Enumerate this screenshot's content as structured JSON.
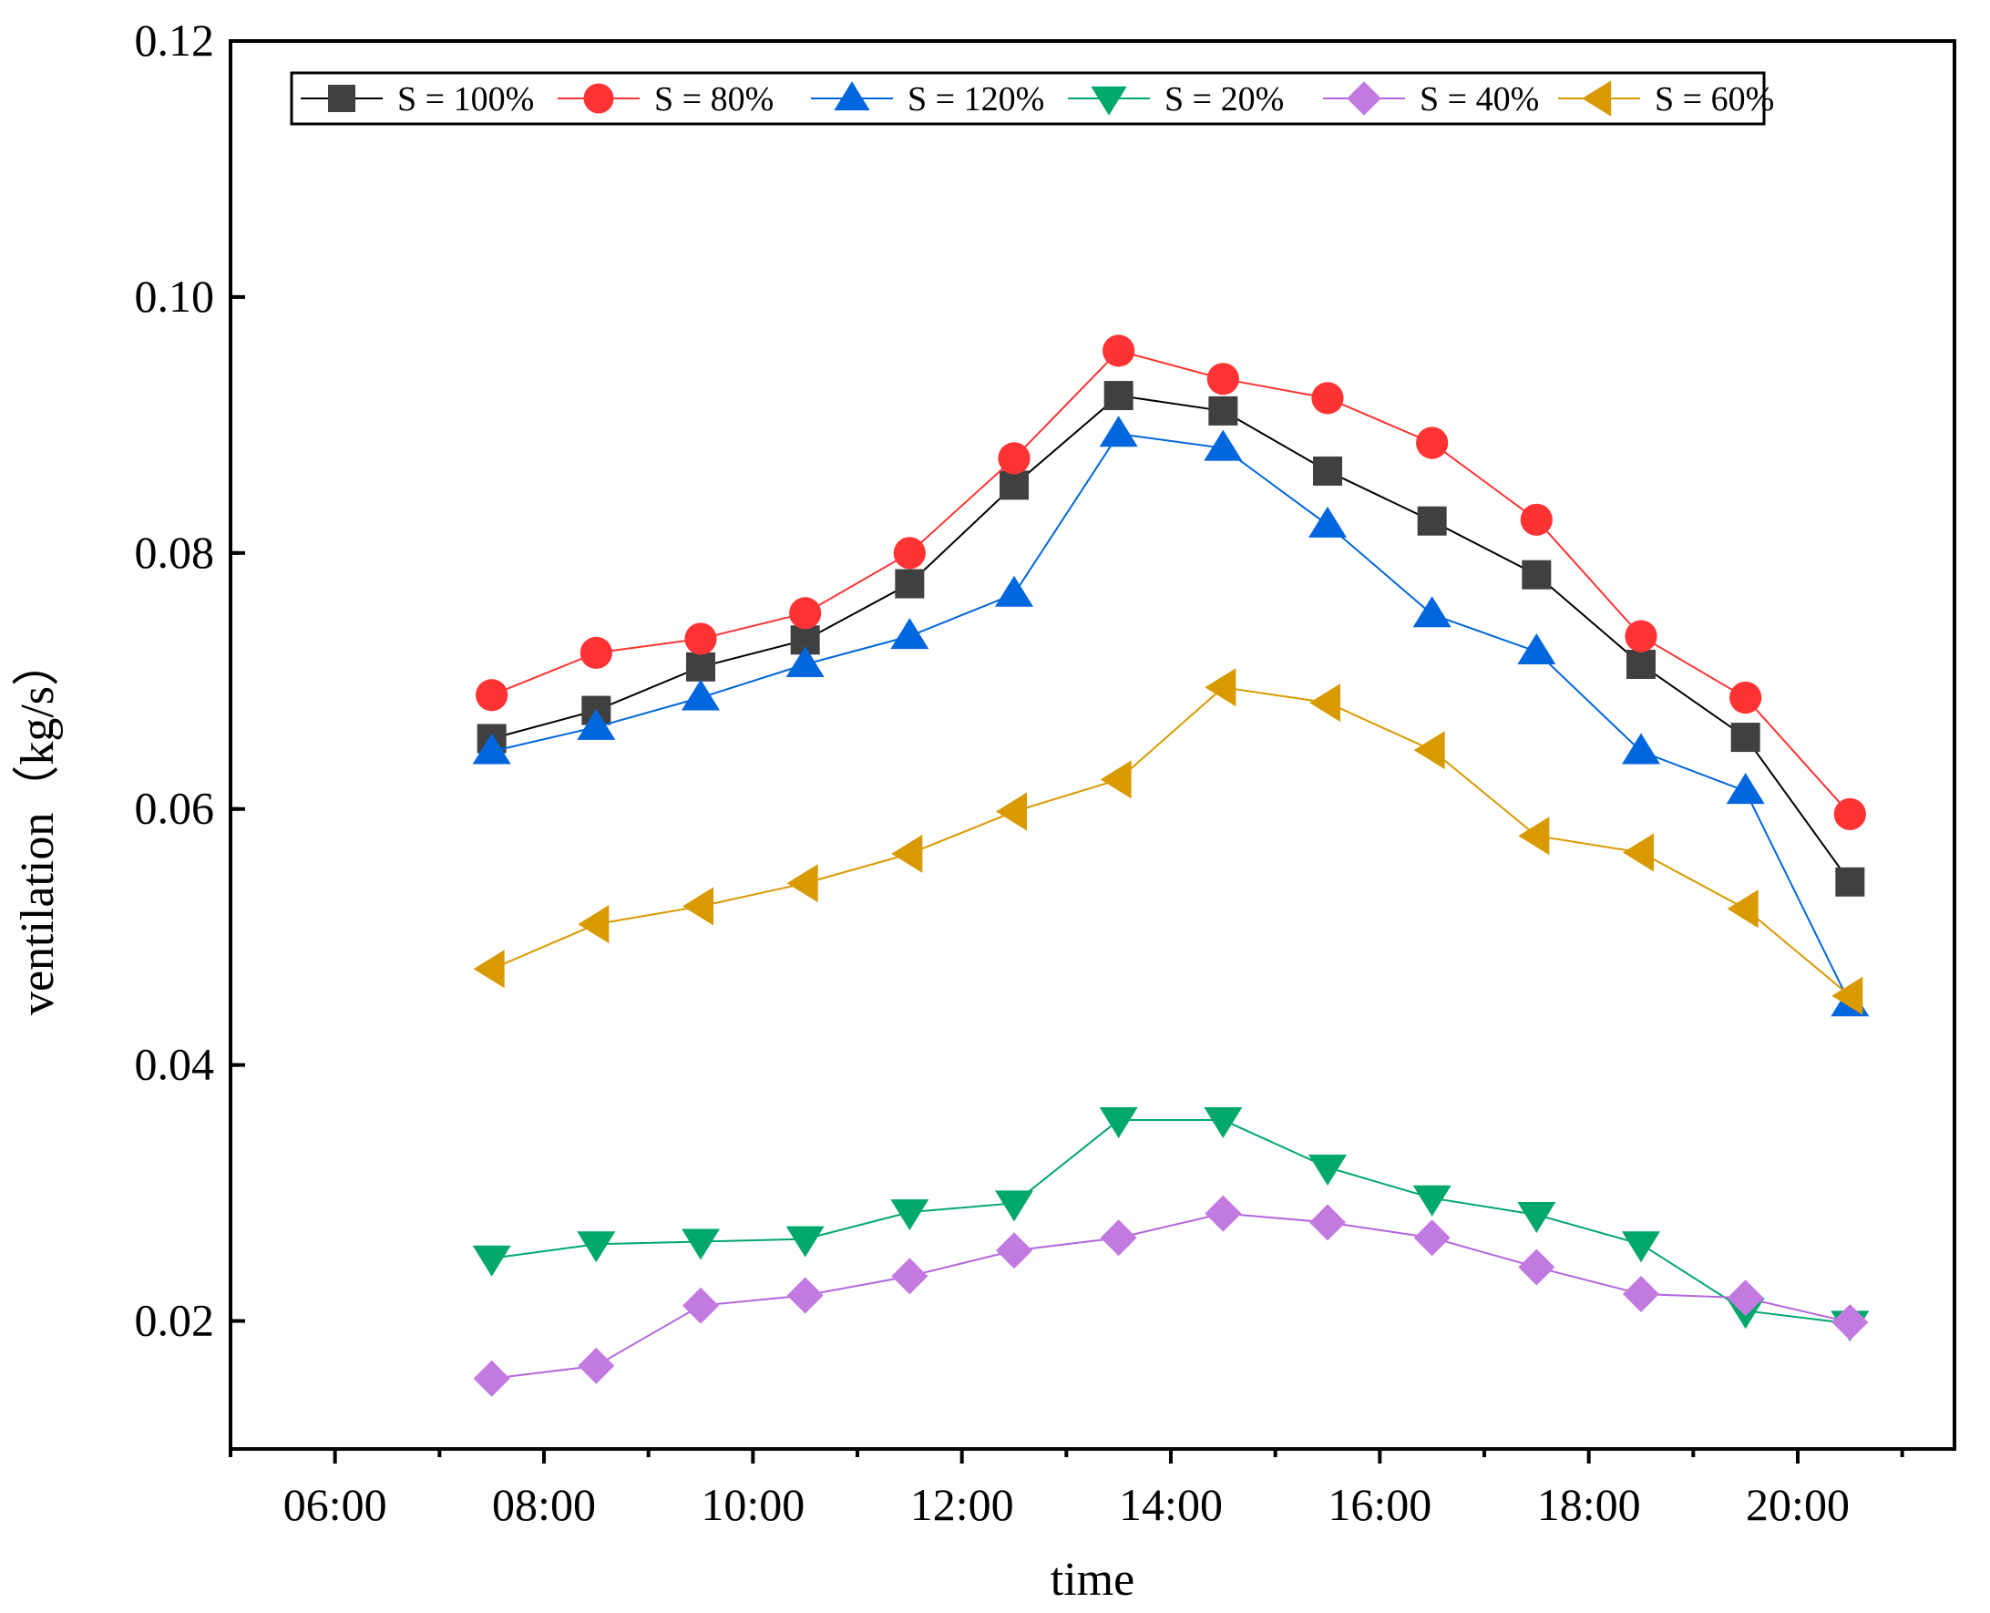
{
  "chart_data": {
    "type": "line",
    "title": "",
    "xlabel": "time",
    "ylabel": "ventilation（kg/s）",
    "xlim": [
      5.0,
      21.5
    ],
    "ylim": [
      0.01,
      0.12
    ],
    "x_ticks": [
      {
        "value": 6,
        "label": "06:00"
      },
      {
        "value": 8,
        "label": "08:00"
      },
      {
        "value": 10,
        "label": "10:00"
      },
      {
        "value": 12,
        "label": "12:00"
      },
      {
        "value": 14,
        "label": "14:00"
      },
      {
        "value": 16,
        "label": "16:00"
      },
      {
        "value": 18,
        "label": "18:00"
      },
      {
        "value": 20,
        "label": "20:00"
      }
    ],
    "y_ticks": [
      {
        "value": 0.02,
        "label": "0.02"
      },
      {
        "value": 0.04,
        "label": "0.04"
      },
      {
        "value": 0.06,
        "label": "0.06"
      },
      {
        "value": 0.08,
        "label": "0.08"
      },
      {
        "value": 0.1,
        "label": "0.10"
      },
      {
        "value": 0.12,
        "label": "0.12"
      }
    ],
    "legend_position": "top",
    "grid": false,
    "x": [
      7.5,
      8.5,
      9.5,
      10.5,
      11.5,
      12.5,
      13.5,
      14.5,
      15.5,
      16.5,
      17.5,
      18.5,
      19.5,
      20.5
    ],
    "series": [
      {
        "name": "S = 100%",
        "marker": "square",
        "color": "#404040",
        "line_color": "#000000",
        "values": [
          0.0655,
          0.0677,
          0.0711,
          0.0732,
          0.0776,
          0.0853,
          0.0923,
          0.0911,
          0.0864,
          0.0825,
          0.0783,
          0.0713,
          0.0656,
          0.0543
        ]
      },
      {
        "name": "S = 80%",
        "marker": "circle",
        "color": "#ff3333",
        "line_color": "#ff3333",
        "values": [
          0.0689,
          0.0722,
          0.0733,
          0.0753,
          0.08,
          0.0874,
          0.0958,
          0.0936,
          0.0921,
          0.0886,
          0.0826,
          0.0735,
          0.0687,
          0.0596
        ]
      },
      {
        "name": "S = 120%",
        "marker": "triangle-up",
        "color": "#0066dd",
        "line_color": "#0066dd",
        "values": [
          0.0645,
          0.0664,
          0.0687,
          0.0713,
          0.0735,
          0.0768,
          0.0893,
          0.0882,
          0.0822,
          0.0752,
          0.0723,
          0.0645,
          0.0614,
          0.0448
        ]
      },
      {
        "name": "S = 20%",
        "marker": "triangle-down",
        "color": "#00a86b",
        "line_color": "#00a86b",
        "values": [
          0.0249,
          0.026,
          0.0262,
          0.0264,
          0.0285,
          0.0292,
          0.0357,
          0.0357,
          0.032,
          0.0296,
          0.0283,
          0.026,
          0.0208,
          0.0198
        ]
      },
      {
        "name": "S = 40%",
        "marker": "diamond",
        "color": "#c27ae0",
        "line_color": "#b266dd",
        "values": [
          0.0155,
          0.0165,
          0.0212,
          0.022,
          0.0235,
          0.0255,
          0.0265,
          0.0284,
          0.0277,
          0.0265,
          0.0242,
          0.0221,
          0.0218,
          0.0199
        ]
      },
      {
        "name": "S = 60%",
        "marker": "triangle-left",
        "color": "#d99a00",
        "line_color": "#d99a00",
        "values": [
          0.0475,
          0.051,
          0.0524,
          0.0542,
          0.0565,
          0.0598,
          0.0623,
          0.0695,
          0.0683,
          0.0646,
          0.0579,
          0.0566,
          0.0522,
          0.0454
        ]
      }
    ]
  }
}
